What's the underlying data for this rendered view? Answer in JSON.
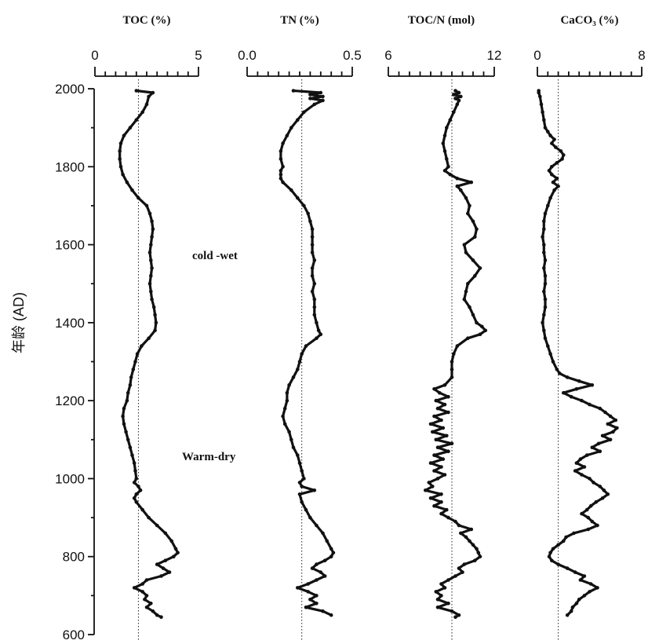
{
  "chart_data": {
    "type": "line",
    "orientation": "vertical-profiles",
    "ylabel": "年龄 (AD)",
    "ylim": [
      600,
      2000
    ],
    "yticks": [
      "2000",
      "1800",
      "1600",
      "1400",
      "1200",
      "1000",
      "800",
      "600"
    ],
    "annotations": [
      "cold -wet",
      "Warm-dry"
    ],
    "panels": [
      {
        "title": "TOC (%)",
        "xlim": [
          0,
          5
        ],
        "xticks": [
          "0",
          "5"
        ],
        "ref": 2.1,
        "age": [
          1995,
          1990,
          1980,
          1960,
          1940,
          1920,
          1900,
          1880,
          1860,
          1840,
          1820,
          1800,
          1780,
          1760,
          1740,
          1720,
          1700,
          1680,
          1660,
          1640,
          1620,
          1600,
          1580,
          1560,
          1540,
          1520,
          1500,
          1480,
          1460,
          1440,
          1420,
          1400,
          1380,
          1360,
          1340,
          1320,
          1300,
          1280,
          1260,
          1240,
          1220,
          1200,
          1180,
          1160,
          1140,
          1120,
          1100,
          1080,
          1060,
          1040,
          1020,
          1000,
          990,
          980,
          970,
          960,
          950,
          940,
          920,
          900,
          880,
          860,
          840,
          820,
          810,
          800,
          790,
          780,
          770,
          760,
          750,
          740,
          730,
          720,
          710,
          700,
          690,
          680,
          670,
          660,
          650,
          645
        ],
        "values": [
          2.0,
          2.8,
          2.6,
          2.5,
          2.3,
          2.0,
          1.7,
          1.4,
          1.25,
          1.2,
          1.2,
          1.25,
          1.35,
          1.55,
          1.8,
          2.1,
          2.5,
          2.65,
          2.75,
          2.8,
          2.75,
          2.7,
          2.65,
          2.7,
          2.75,
          2.7,
          2.65,
          2.7,
          2.75,
          2.85,
          2.9,
          2.95,
          2.9,
          2.6,
          2.25,
          2.05,
          1.95,
          1.85,
          1.75,
          1.7,
          1.6,
          1.55,
          1.4,
          1.35,
          1.4,
          1.5,
          1.6,
          1.7,
          1.8,
          1.9,
          1.95,
          2.0,
          1.9,
          2.1,
          2.2,
          2.0,
          1.9,
          2.0,
          2.3,
          2.6,
          3.0,
          3.4,
          3.7,
          3.9,
          4.0,
          3.8,
          3.4,
          3.0,
          3.3,
          3.6,
          3.2,
          2.5,
          2.3,
          1.9,
          2.3,
          2.5,
          2.4,
          2.7,
          2.5,
          2.8,
          3.0,
          3.2
        ]
      },
      {
        "title": "TN (%)",
        "xlim": [
          0.0,
          0.5
        ],
        "xticks": [
          "0.0",
          "0.5"
        ],
        "ref": 0.26,
        "age": [
          1995,
          1990,
          1985,
          1980,
          1975,
          1970,
          1960,
          1940,
          1920,
          1900,
          1880,
          1860,
          1840,
          1820,
          1800,
          1790,
          1780,
          1770,
          1760,
          1740,
          1720,
          1700,
          1680,
          1660,
          1640,
          1620,
          1600,
          1580,
          1560,
          1540,
          1520,
          1500,
          1480,
          1460,
          1440,
          1420,
          1400,
          1380,
          1370,
          1360,
          1340,
          1320,
          1300,
          1280,
          1260,
          1240,
          1220,
          1200,
          1180,
          1160,
          1140,
          1120,
          1100,
          1080,
          1060,
          1040,
          1020,
          1000,
          990,
          980,
          970,
          960,
          940,
          920,
          900,
          880,
          860,
          840,
          820,
          810,
          800,
          790,
          780,
          770,
          760,
          750,
          740,
          730,
          720,
          710,
          700,
          690,
          680,
          670,
          660,
          650
        ],
        "values": [
          0.22,
          0.35,
          0.3,
          0.36,
          0.3,
          0.36,
          0.32,
          0.27,
          0.24,
          0.21,
          0.19,
          0.17,
          0.16,
          0.16,
          0.17,
          0.16,
          0.16,
          0.16,
          0.17,
          0.21,
          0.24,
          0.27,
          0.29,
          0.3,
          0.31,
          0.31,
          0.31,
          0.31,
          0.32,
          0.31,
          0.31,
          0.32,
          0.31,
          0.32,
          0.32,
          0.32,
          0.33,
          0.34,
          0.35,
          0.33,
          0.28,
          0.26,
          0.25,
          0.24,
          0.22,
          0.2,
          0.19,
          0.19,
          0.18,
          0.17,
          0.18,
          0.2,
          0.21,
          0.22,
          0.24,
          0.25,
          0.26,
          0.27,
          0.25,
          0.26,
          0.32,
          0.25,
          0.26,
          0.28,
          0.3,
          0.33,
          0.36,
          0.38,
          0.4,
          0.41,
          0.4,
          0.37,
          0.33,
          0.31,
          0.35,
          0.37,
          0.33,
          0.29,
          0.24,
          0.29,
          0.33,
          0.3,
          0.33,
          0.28,
          0.36,
          0.4
        ]
      },
      {
        "title": "TOC/N (mol)",
        "xlim": [
          6,
          12
        ],
        "xticks": [
          "6",
          "12"
        ],
        "ref": 9.6,
        "age": [
          1995,
          1990,
          1985,
          1980,
          1975,
          1970,
          1960,
          1940,
          1920,
          1900,
          1880,
          1860,
          1840,
          1820,
          1800,
          1790,
          1780,
          1770,
          1760,
          1750,
          1740,
          1720,
          1700,
          1680,
          1660,
          1640,
          1620,
          1600,
          1580,
          1560,
          1540,
          1520,
          1500,
          1480,
          1460,
          1440,
          1420,
          1400,
          1390,
          1380,
          1370,
          1360,
          1340,
          1320,
          1300,
          1280,
          1260,
          1240,
          1230,
          1220,
          1210,
          1200,
          1190,
          1180,
          1170,
          1160,
          1150,
          1140,
          1130,
          1120,
          1110,
          1100,
          1090,
          1080,
          1070,
          1060,
          1050,
          1040,
          1030,
          1020,
          1010,
          1000,
          990,
          980,
          970,
          960,
          950,
          940,
          930,
          920,
          910,
          900,
          890,
          880,
          870,
          860,
          850,
          840,
          830,
          820,
          810,
          800,
          790,
          780,
          770,
          760,
          750,
          740,
          730,
          720,
          710,
          700,
          690,
          680,
          670,
          660,
          650,
          645
        ],
        "values": [
          9.8,
          10.0,
          9.7,
          10.1,
          9.8,
          10.0,
          9.9,
          9.7,
          9.5,
          9.3,
          9.2,
          9.1,
          9.2,
          9.3,
          9.4,
          9.2,
          9.5,
          9.9,
          10.7,
          9.9,
          10.1,
          10.4,
          10.6,
          10.5,
          10.8,
          11.0,
          10.9,
          10.3,
          10.4,
          10.8,
          11.2,
          10.9,
          10.5,
          10.4,
          10.3,
          10.6,
          10.8,
          11.0,
          11.3,
          11.5,
          11.2,
          10.5,
          9.9,
          9.7,
          9.6,
          9.6,
          9.6,
          9.2,
          8.6,
          8.9,
          9.4,
          8.7,
          9.2,
          8.8,
          9.4,
          8.6,
          9.0,
          8.4,
          9.1,
          8.5,
          9.3,
          8.7,
          9.6,
          8.8,
          9.4,
          8.6,
          9.1,
          8.4,
          9.0,
          8.6,
          9.2,
          8.8,
          8.3,
          8.5,
          8.1,
          9.0,
          8.4,
          9.0,
          8.6,
          9.3,
          9.0,
          9.4,
          9.8,
          10.0,
          10.7,
          10.1,
          10.4,
          10.6,
          10.8,
          11.0,
          11.1,
          11.2,
          10.9,
          10.3,
          10.0,
          10.2,
          9.8,
          9.4,
          9.0,
          9.2,
          8.7,
          9.0,
          8.8,
          9.4,
          8.8,
          9.6,
          10.0,
          9.8
        ]
      },
      {
        "title": "CaCO₃ (%)",
        "xlim": [
          0,
          8
        ],
        "xticks": [
          "0",
          "8"
        ],
        "ref": 1.6,
        "age": [
          1995,
          1990,
          1980,
          1960,
          1940,
          1920,
          1900,
          1890,
          1880,
          1870,
          1860,
          1850,
          1840,
          1830,
          1820,
          1810,
          1800,
          1790,
          1780,
          1770,
          1760,
          1750,
          1740,
          1720,
          1700,
          1680,
          1660,
          1640,
          1620,
          1600,
          1580,
          1560,
          1540,
          1520,
          1500,
          1480,
          1460,
          1440,
          1420,
          1400,
          1380,
          1360,
          1340,
          1320,
          1300,
          1280,
          1270,
          1260,
          1250,
          1240,
          1230,
          1220,
          1210,
          1200,
          1190,
          1180,
          1170,
          1160,
          1150,
          1140,
          1130,
          1120,
          1110,
          1100,
          1090,
          1080,
          1070,
          1060,
          1050,
          1040,
          1030,
          1020,
          1010,
          1000,
          990,
          980,
          970,
          960,
          950,
          940,
          930,
          920,
          910,
          900,
          890,
          880,
          870,
          860,
          850,
          840,
          830,
          820,
          810,
          800,
          790,
          780,
          770,
          760,
          750,
          740,
          730,
          720,
          710,
          700,
          690,
          680,
          670,
          660,
          650
        ],
        "values": [
          0.1,
          0.1,
          0.2,
          0.3,
          0.4,
          0.5,
          0.6,
          0.8,
          1.0,
          1.3,
          1.1,
          1.4,
          1.8,
          2.0,
          1.9,
          1.5,
          1.1,
          0.9,
          1.1,
          1.5,
          1.2,
          1.6,
          1.3,
          1.0,
          0.8,
          0.6,
          0.5,
          0.5,
          0.4,
          0.5,
          0.5,
          0.6,
          0.5,
          0.6,
          0.6,
          0.5,
          0.6,
          0.6,
          0.5,
          0.4,
          0.5,
          0.6,
          0.8,
          1.0,
          1.2,
          1.5,
          1.7,
          2.3,
          3.2,
          4.2,
          3.0,
          2.0,
          2.6,
          3.4,
          4.0,
          4.8,
          5.2,
          5.6,
          6.0,
          5.4,
          6.1,
          5.8,
          5.0,
          5.6,
          4.7,
          4.2,
          4.8,
          3.8,
          3.3,
          3.0,
          3.6,
          2.9,
          3.4,
          4.0,
          4.3,
          4.8,
          5.1,
          5.4,
          5.0,
          4.5,
          4.1,
          3.8,
          3.4,
          3.9,
          4.2,
          4.6,
          3.9,
          2.8,
          2.2,
          2.0,
          1.6,
          1.2,
          1.0,
          0.9,
          1.1,
          1.6,
          2.3,
          2.9,
          3.6,
          3.3,
          4.1,
          4.6,
          4.0,
          3.6,
          3.2,
          3.0,
          2.7,
          2.6,
          2.3
        ]
      }
    ]
  }
}
